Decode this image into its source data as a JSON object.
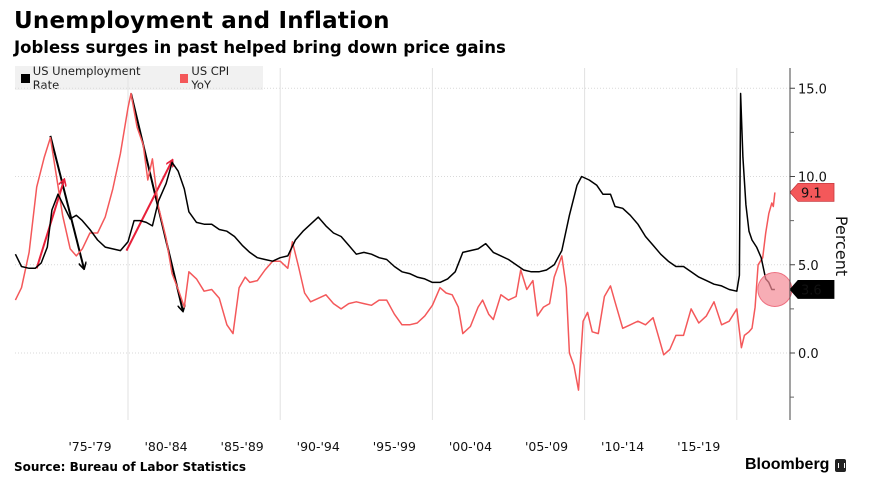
{
  "header": {
    "title": "Unemployment and Inflation",
    "subtitle": "Jobless surges in past helped bring down price gains"
  },
  "legend": [
    {
      "label": "US Unemployment Rate",
      "color": "#000000"
    },
    {
      "label": "US CPI YoY",
      "color": "#f4585a"
    }
  ],
  "footer": {
    "source": "Source: Bureau of Labor Statistics",
    "brand": "Bloomberg"
  },
  "chart_data": {
    "type": "line",
    "title": "Unemployment and Inflation",
    "subtitle": "Jobless surges in past helped bring down price gains",
    "xlabel": "",
    "ylabel": "Percent",
    "xlim": [
      1972.6,
      2024.5
    ],
    "ylim": [
      -3.8,
      16.3
    ],
    "grid": true,
    "legend_position": "top-left",
    "x_tick_labels": [
      "'75-'79",
      "'80-'84",
      "'85-'89",
      "'90-'94",
      "'95-'99",
      "'00-'04",
      "'05-'09",
      "'10-'14",
      "'15-'19"
    ],
    "x_tick_centers": [
      1977.5,
      1982.5,
      1987.5,
      1992.5,
      1997.5,
      2002.5,
      2007.5,
      2012.5,
      2017.5
    ],
    "x_gridlines": [
      1980,
      1990,
      2000,
      2010,
      2020
    ],
    "y_ticks": [
      0.0,
      5.0,
      10.0,
      15.0
    ],
    "y_tick_labels": [
      "0.0",
      "5.0",
      "10.0",
      "15.0"
    ],
    "y_minor_ticks": [
      -2.5,
      2.5,
      7.5,
      12.5
    ],
    "series": [
      {
        "name": "US Unemployment Rate",
        "color": "#000000",
        "last_value_label": "3.6",
        "points": [
          [
            1972.6,
            5.6
          ],
          [
            1973.0,
            4.9
          ],
          [
            1973.5,
            4.8
          ],
          [
            1973.9,
            4.8
          ],
          [
            1974.3,
            5.1
          ],
          [
            1974.7,
            6.0
          ],
          [
            1975.0,
            8.1
          ],
          [
            1975.4,
            9.0
          ],
          [
            1975.8,
            8.3
          ],
          [
            1976.2,
            7.6
          ],
          [
            1976.6,
            7.8
          ],
          [
            1977.0,
            7.5
          ],
          [
            1977.5,
            7.0
          ],
          [
            1978.0,
            6.4
          ],
          [
            1978.5,
            6.0
          ],
          [
            1979.0,
            5.9
          ],
          [
            1979.5,
            5.8
          ],
          [
            1980.0,
            6.3
          ],
          [
            1980.4,
            7.5
          ],
          [
            1980.8,
            7.5
          ],
          [
            1981.2,
            7.4
          ],
          [
            1981.6,
            7.2
          ],
          [
            1982.0,
            8.6
          ],
          [
            1982.5,
            9.6
          ],
          [
            1982.9,
            10.8
          ],
          [
            1983.3,
            10.3
          ],
          [
            1983.7,
            9.3
          ],
          [
            1984.0,
            8.0
          ],
          [
            1984.5,
            7.4
          ],
          [
            1985.0,
            7.3
          ],
          [
            1985.5,
            7.3
          ],
          [
            1986.0,
            7.0
          ],
          [
            1986.5,
            6.9
          ],
          [
            1987.0,
            6.6
          ],
          [
            1987.5,
            6.1
          ],
          [
            1988.0,
            5.7
          ],
          [
            1988.5,
            5.4
          ],
          [
            1989.0,
            5.3
          ],
          [
            1989.5,
            5.2
          ],
          [
            1990.0,
            5.4
          ],
          [
            1990.5,
            5.5
          ],
          [
            1991.0,
            6.4
          ],
          [
            1991.5,
            6.9
          ],
          [
            1992.0,
            7.3
          ],
          [
            1992.5,
            7.7
          ],
          [
            1993.0,
            7.2
          ],
          [
            1993.5,
            6.8
          ],
          [
            1994.0,
            6.6
          ],
          [
            1994.5,
            6.1
          ],
          [
            1995.0,
            5.6
          ],
          [
            1995.5,
            5.7
          ],
          [
            1996.0,
            5.6
          ],
          [
            1996.5,
            5.4
          ],
          [
            1997.0,
            5.3
          ],
          [
            1997.5,
            4.9
          ],
          [
            1998.0,
            4.6
          ],
          [
            1998.5,
            4.5
          ],
          [
            1999.0,
            4.3
          ],
          [
            1999.5,
            4.2
          ],
          [
            2000.0,
            4.0
          ],
          [
            2000.5,
            4.0
          ],
          [
            2001.0,
            4.2
          ],
          [
            2001.5,
            4.6
          ],
          [
            2002.0,
            5.7
          ],
          [
            2002.5,
            5.8
          ],
          [
            2003.0,
            5.9
          ],
          [
            2003.5,
            6.2
          ],
          [
            2004.0,
            5.7
          ],
          [
            2004.5,
            5.5
          ],
          [
            2005.0,
            5.3
          ],
          [
            2005.5,
            5.0
          ],
          [
            2006.0,
            4.7
          ],
          [
            2006.5,
            4.6
          ],
          [
            2007.0,
            4.6
          ],
          [
            2007.5,
            4.7
          ],
          [
            2008.0,
            5.0
          ],
          [
            2008.5,
            5.8
          ],
          [
            2009.0,
            7.8
          ],
          [
            2009.5,
            9.5
          ],
          [
            2009.8,
            10.0
          ],
          [
            2010.3,
            9.8
          ],
          [
            2010.8,
            9.5
          ],
          [
            2011.2,
            9.0
          ],
          [
            2011.7,
            9.0
          ],
          [
            2012.0,
            8.3
          ],
          [
            2012.5,
            8.2
          ],
          [
            2013.0,
            7.8
          ],
          [
            2013.5,
            7.3
          ],
          [
            2014.0,
            6.6
          ],
          [
            2014.5,
            6.1
          ],
          [
            2015.0,
            5.6
          ],
          [
            2015.5,
            5.2
          ],
          [
            2016.0,
            4.9
          ],
          [
            2016.5,
            4.9
          ],
          [
            2017.0,
            4.6
          ],
          [
            2017.5,
            4.3
          ],
          [
            2018.0,
            4.1
          ],
          [
            2018.5,
            3.9
          ],
          [
            2019.0,
            3.8
          ],
          [
            2019.5,
            3.6
          ],
          [
            2020.0,
            3.5
          ],
          [
            2020.17,
            4.4
          ],
          [
            2020.25,
            14.7
          ],
          [
            2020.4,
            11.1
          ],
          [
            2020.6,
            8.4
          ],
          [
            2020.8,
            6.9
          ],
          [
            2021.0,
            6.4
          ],
          [
            2021.3,
            6.0
          ],
          [
            2021.6,
            5.4
          ],
          [
            2021.9,
            4.2
          ],
          [
            2022.1,
            4.0
          ],
          [
            2022.3,
            3.6
          ],
          [
            2022.5,
            3.6
          ]
        ]
      },
      {
        "name": "US CPI YoY",
        "color": "#f4585a",
        "last_value_label": "9.1",
        "points": [
          [
            1972.6,
            3.0
          ],
          [
            1973.0,
            3.7
          ],
          [
            1973.5,
            5.7
          ],
          [
            1974.0,
            9.4
          ],
          [
            1974.5,
            11.1
          ],
          [
            1974.9,
            12.2
          ],
          [
            1975.3,
            10.0
          ],
          [
            1975.7,
            7.8
          ],
          [
            1976.2,
            5.9
          ],
          [
            1976.6,
            5.5
          ],
          [
            1977.0,
            5.9
          ],
          [
            1977.5,
            6.8
          ],
          [
            1978.0,
            6.8
          ],
          [
            1978.5,
            7.7
          ],
          [
            1979.0,
            9.3
          ],
          [
            1979.5,
            11.3
          ],
          [
            1980.0,
            13.9
          ],
          [
            1980.2,
            14.7
          ],
          [
            1980.6,
            12.8
          ],
          [
            1981.0,
            11.8
          ],
          [
            1981.3,
            9.8
          ],
          [
            1981.6,
            11.0
          ],
          [
            1982.0,
            8.3
          ],
          [
            1982.5,
            6.5
          ],
          [
            1982.9,
            4.5
          ],
          [
            1983.3,
            3.6
          ],
          [
            1983.7,
            2.6
          ],
          [
            1984.0,
            4.6
          ],
          [
            1984.5,
            4.2
          ],
          [
            1985.0,
            3.5
          ],
          [
            1985.5,
            3.6
          ],
          [
            1986.0,
            3.1
          ],
          [
            1986.5,
            1.6
          ],
          [
            1986.9,
            1.1
          ],
          [
            1987.3,
            3.7
          ],
          [
            1987.7,
            4.3
          ],
          [
            1988.0,
            4.0
          ],
          [
            1988.5,
            4.1
          ],
          [
            1989.0,
            4.7
          ],
          [
            1989.5,
            5.2
          ],
          [
            1990.0,
            5.2
          ],
          [
            1990.5,
            4.8
          ],
          [
            1990.8,
            6.3
          ],
          [
            1991.2,
            4.9
          ],
          [
            1991.6,
            3.4
          ],
          [
            1992.0,
            2.9
          ],
          [
            1992.5,
            3.1
          ],
          [
            1993.0,
            3.3
          ],
          [
            1993.5,
            2.8
          ],
          [
            1994.0,
            2.5
          ],
          [
            1994.5,
            2.8
          ],
          [
            1995.0,
            2.9
          ],
          [
            1995.5,
            2.8
          ],
          [
            1996.0,
            2.7
          ],
          [
            1996.5,
            3.0
          ],
          [
            1997.0,
            3.0
          ],
          [
            1997.5,
            2.2
          ],
          [
            1998.0,
            1.6
          ],
          [
            1998.5,
            1.6
          ],
          [
            1999.0,
            1.7
          ],
          [
            1999.5,
            2.1
          ],
          [
            2000.0,
            2.7
          ],
          [
            2000.5,
            3.7
          ],
          [
            2000.9,
            3.4
          ],
          [
            2001.3,
            3.3
          ],
          [
            2001.7,
            2.6
          ],
          [
            2002.0,
            1.1
          ],
          [
            2002.5,
            1.5
          ],
          [
            2003.0,
            2.6
          ],
          [
            2003.3,
            3.0
          ],
          [
            2003.7,
            2.2
          ],
          [
            2004.0,
            1.9
          ],
          [
            2004.5,
            3.3
          ],
          [
            2005.0,
            3.0
          ],
          [
            2005.5,
            3.2
          ],
          [
            2005.8,
            4.7
          ],
          [
            2006.2,
            3.6
          ],
          [
            2006.6,
            4.1
          ],
          [
            2006.9,
            2.1
          ],
          [
            2007.3,
            2.6
          ],
          [
            2007.7,
            2.8
          ],
          [
            2008.0,
            4.3
          ],
          [
            2008.5,
            5.5
          ],
          [
            2008.8,
            3.7
          ],
          [
            2009.0,
            0.0
          ],
          [
            2009.3,
            -0.7
          ],
          [
            2009.6,
            -2.1
          ],
          [
            2009.9,
            1.8
          ],
          [
            2010.2,
            2.3
          ],
          [
            2010.5,
            1.2
          ],
          [
            2010.9,
            1.1
          ],
          [
            2011.3,
            3.2
          ],
          [
            2011.7,
            3.8
          ],
          [
            2012.0,
            2.9
          ],
          [
            2012.5,
            1.4
          ],
          [
            2013.0,
            1.6
          ],
          [
            2013.5,
            1.8
          ],
          [
            2014.0,
            1.6
          ],
          [
            2014.5,
            2.0
          ],
          [
            2014.9,
            0.8
          ],
          [
            2015.2,
            -0.1
          ],
          [
            2015.6,
            0.2
          ],
          [
            2016.0,
            1.0
          ],
          [
            2016.5,
            1.0
          ],
          [
            2017.0,
            2.5
          ],
          [
            2017.5,
            1.7
          ],
          [
            2018.0,
            2.1
          ],
          [
            2018.5,
            2.9
          ],
          [
            2019.0,
            1.6
          ],
          [
            2019.5,
            1.8
          ],
          [
            2020.0,
            2.5
          ],
          [
            2020.3,
            0.3
          ],
          [
            2020.5,
            1.0
          ],
          [
            2020.8,
            1.2
          ],
          [
            2021.0,
            1.4
          ],
          [
            2021.2,
            2.6
          ],
          [
            2021.4,
            5.0
          ],
          [
            2021.7,
            5.4
          ],
          [
            2021.9,
            6.8
          ],
          [
            2022.1,
            7.9
          ],
          [
            2022.3,
            8.5
          ],
          [
            2022.4,
            8.3
          ],
          [
            2022.5,
            9.1
          ]
        ]
      }
    ],
    "annotations": [
      {
        "type": "arrow",
        "color": "#000000",
        "from": [
          1974.9,
          12.3
        ],
        "to": [
          1977.1,
          4.8
        ]
      },
      {
        "type": "arrow",
        "color": "#000000",
        "from": [
          1980.2,
          14.7
        ],
        "to": [
          1983.6,
          2.4
        ]
      },
      {
        "type": "arrow",
        "color": "#e8203a",
        "from": [
          1974.0,
          4.8
        ],
        "to": [
          1975.8,
          9.8
        ]
      },
      {
        "type": "arrow",
        "color": "#e8203a",
        "from": [
          1979.9,
          5.8
        ],
        "to": [
          1982.9,
          10.9
        ]
      },
      {
        "type": "circle",
        "color": "#f48a96",
        "center": [
          2022.5,
          3.6
        ]
      }
    ]
  }
}
